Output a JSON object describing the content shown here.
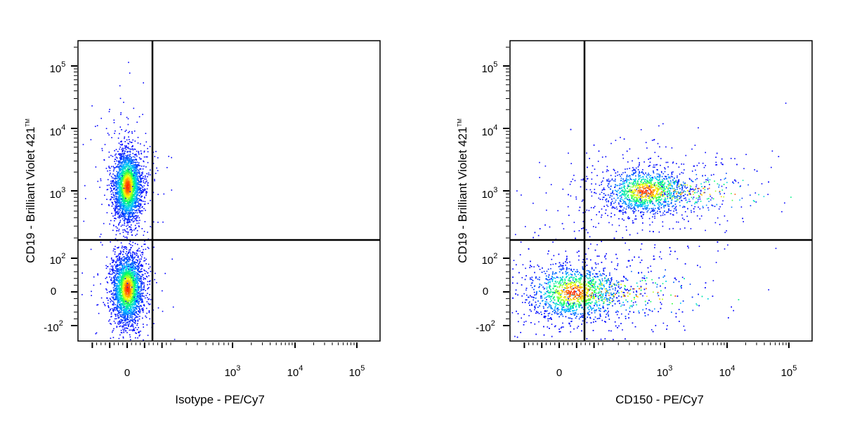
{
  "chart_data": [
    {
      "type": "scatter",
      "xlabel": "Isotype - PE/Cy7",
      "ylabel": "CD19 - Brilliant Violet 421",
      "ylabel_mark": "TM",
      "x_scale": "biexponential",
      "y_scale": "biexponential",
      "x_ticks": [
        "0",
        "10^3",
        "10^4",
        "10^5"
      ],
      "y_ticks": [
        "-10^2",
        "0",
        "10^2",
        "10^3",
        "10^4",
        "10^5"
      ],
      "gate": {
        "x": 350,
        "y": 180
      },
      "populations": [
        {
          "name": "",
          "x_center": 0,
          "y_center": 1200,
          "approx_fraction": 0.5
        },
        {
          "name": "",
          "x_center": 0,
          "y_center": 0,
          "approx_fraction": 0.5
        }
      ],
      "colormap": [
        "#0000ff",
        "#00ccff",
        "#00ff66",
        "#ffff00",
        "#ff3300"
      ]
    },
    {
      "type": "scatter",
      "xlabel": "CD150 - PE/Cy7",
      "ylabel": "CD19 - Brilliant Violet 421",
      "ylabel_mark": "TM",
      "x_scale": "biexponential",
      "y_scale": "biexponential",
      "x_ticks": [
        "0",
        "10^3",
        "10^4",
        "10^5"
      ],
      "y_ticks": [
        "-10^2",
        "0",
        "10^2",
        "10^3",
        "10^4",
        "10^5"
      ],
      "gate": {
        "x": 180,
        "y": 180
      },
      "populations": [
        {
          "name": "",
          "x_center": 600,
          "y_center": 1000,
          "approx_fraction": 0.45
        },
        {
          "name": "",
          "x_center": 60,
          "y_center": 0,
          "approx_fraction": 0.55
        }
      ],
      "colormap": [
        "#0000ff",
        "#00ccff",
        "#00ff66",
        "#ffff00",
        "#ff3300"
      ]
    }
  ]
}
